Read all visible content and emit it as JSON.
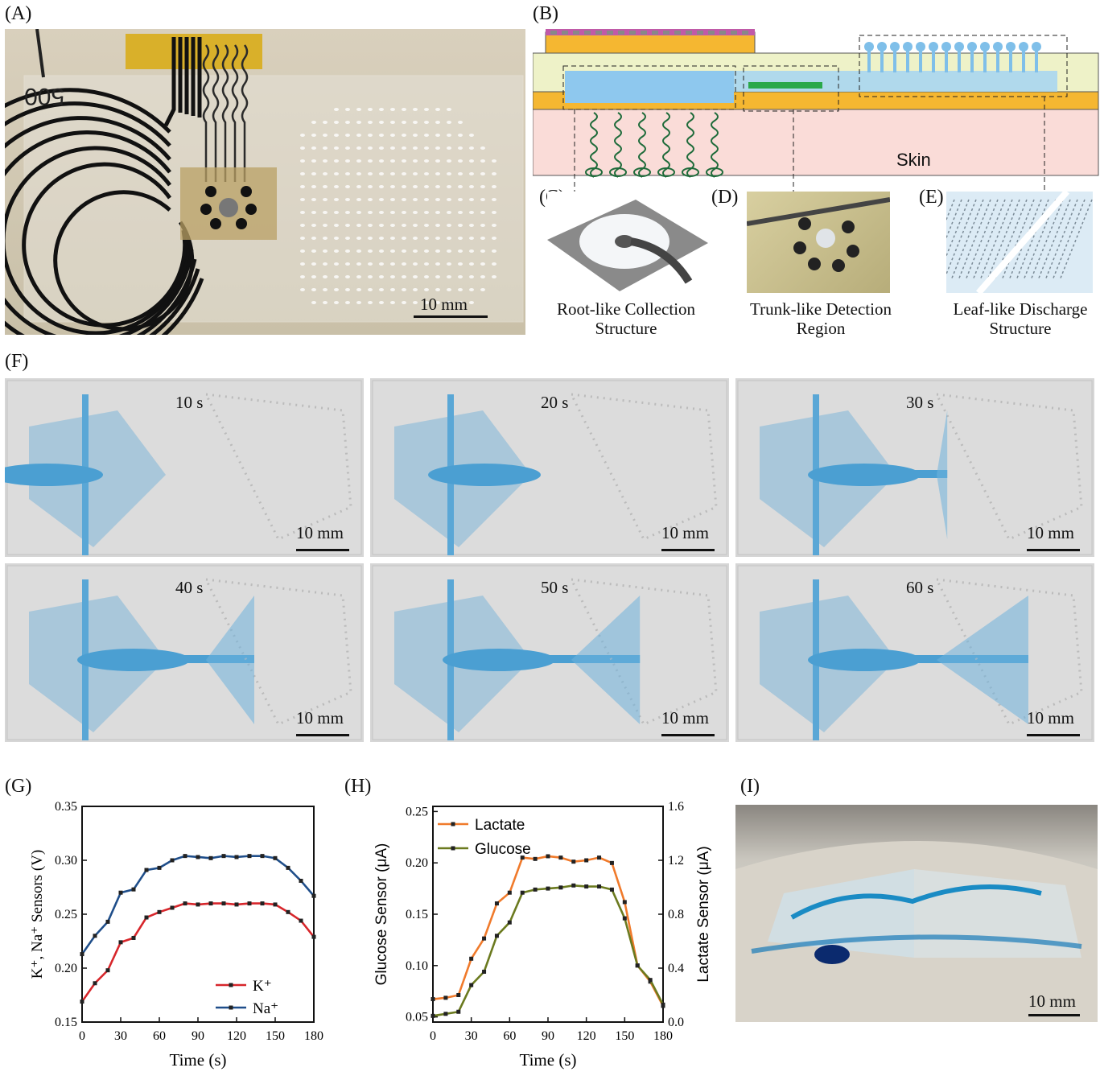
{
  "panels": {
    "A": {
      "label": "(A)",
      "marking": "500",
      "scale": "10 mm"
    },
    "B": {
      "label": "(B)",
      "skin": "Skin"
    },
    "C": {
      "label": "(C)",
      "caption_line1": "Root-like Collection",
      "caption_line2": "Structure"
    },
    "D": {
      "label": "(D)",
      "caption_line1": "Trunk-like Detection",
      "caption_line2": "Region"
    },
    "E": {
      "label": "(E)",
      "caption_line1": "Leaf-like Discharge",
      "caption_line2": "Structure"
    },
    "F": {
      "label": "(F)",
      "scale": "10 mm",
      "frames": [
        "10 s",
        "20 s",
        "30 s",
        "40 s",
        "50 s",
        "60 s"
      ],
      "fill_fraction": [
        0.2,
        0.45,
        0.62,
        0.75,
        0.82,
        0.9
      ]
    },
    "G": {
      "label": "(G)"
    },
    "H": {
      "label": "(H)"
    },
    "I": {
      "label": "(I)",
      "scale": "10 mm"
    }
  },
  "chart_data": [
    {
      "panel": "G",
      "type": "line",
      "xlabel": "Time (s)",
      "ylabel": "K⁺, Na⁺ Sensors (V)",
      "xlim": [
        0,
        180
      ],
      "ylim": [
        0.15,
        0.35
      ],
      "xticks": [
        0,
        30,
        60,
        90,
        120,
        150,
        180
      ],
      "yticks": [
        0.15,
        0.2,
        0.25,
        0.3,
        0.35
      ],
      "x": [
        0,
        10,
        20,
        30,
        40,
        50,
        60,
        70,
        80,
        90,
        100,
        110,
        120,
        130,
        140,
        150,
        160,
        170,
        180
      ],
      "legend_position": "bottom-right",
      "series": [
        {
          "name": "K⁺",
          "color": "#d7262b",
          "values": [
            0.169,
            0.186,
            0.198,
            0.224,
            0.228,
            0.247,
            0.252,
            0.256,
            0.26,
            0.259,
            0.26,
            0.26,
            0.259,
            0.26,
            0.26,
            0.259,
            0.252,
            0.244,
            0.229
          ]
        },
        {
          "name": "Na⁺",
          "color": "#1f4e8a",
          "values": [
            0.213,
            0.23,
            0.243,
            0.27,
            0.273,
            0.291,
            0.293,
            0.3,
            0.304,
            0.303,
            0.302,
            0.304,
            0.303,
            0.304,
            0.304,
            0.302,
            0.293,
            0.281,
            0.267
          ]
        }
      ]
    },
    {
      "panel": "H",
      "type": "line",
      "xlabel": "Time (s)",
      "ylabel": "Glucose Sensor (μA)",
      "ylabel_right": "Lactate Sensor (μA)",
      "xlim": [
        0,
        180
      ],
      "ylim": [
        0.045,
        0.255
      ],
      "ylim_right": [
        0.0,
        1.6
      ],
      "xticks": [
        0,
        30,
        60,
        90,
        120,
        150,
        180
      ],
      "yticks": [
        0.05,
        0.1,
        0.15,
        0.2,
        0.25
      ],
      "yticks_right": [
        0.0,
        0.4,
        0.8,
        1.2,
        1.6
      ],
      "x": [
        0,
        10,
        20,
        30,
        40,
        50,
        60,
        70,
        80,
        90,
        100,
        110,
        120,
        130,
        140,
        150,
        160,
        170,
        180
      ],
      "legend_position": "top-left",
      "series": [
        {
          "name": "Lactate",
          "color": "#f07a2b",
          "axis": "right",
          "values": [
            0.17,
            0.18,
            0.2,
            0.47,
            0.62,
            0.88,
            0.96,
            1.22,
            1.21,
            1.23,
            1.22,
            1.19,
            1.2,
            1.22,
            1.18,
            0.89,
            0.42,
            0.3,
            0.12
          ]
        },
        {
          "name": "Glucose",
          "color": "#6b7a1f",
          "axis": "left",
          "values": [
            0.051,
            0.053,
            0.055,
            0.081,
            0.094,
            0.129,
            0.142,
            0.171,
            0.174,
            0.175,
            0.176,
            0.178,
            0.177,
            0.177,
            0.174,
            0.146,
            0.1,
            0.086,
            0.062
          ]
        }
      ]
    }
  ]
}
